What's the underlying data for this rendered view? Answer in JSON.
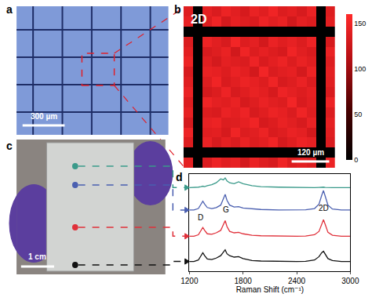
{
  "figure": {
    "labels": [
      "a",
      "b",
      "c",
      "d"
    ],
    "micrograph": {
      "scale_bar": "300 µm"
    },
    "photo": {
      "scale_bar": "1 cm"
    }
  },
  "chart_data": [
    {
      "type": "heatmap",
      "title": "2D",
      "tick_labels": false,
      "scale_bar": "120 µm",
      "colorbar_range": [
        0,
        160
      ],
      "colorbar_ticks": [
        0,
        50,
        100,
        150
      ],
      "z": [
        [
          138,
          0,
          142,
          135,
          147,
          140,
          132,
          145,
          139,
          150,
          136,
          141,
          133,
          146,
          0,
          137
        ],
        [
          144,
          0,
          136,
          149,
          131,
          143,
          138,
          134,
          148,
          140,
          145,
          129,
          142,
          137,
          0,
          141
        ],
        [
          0,
          0,
          0,
          0,
          0,
          0,
          0,
          0,
          0,
          0,
          0,
          0,
          0,
          0,
          0,
          0
        ],
        [
          135,
          0,
          147,
          140,
          133,
          151,
          137,
          142,
          130,
          146,
          139,
          144,
          136,
          148,
          0,
          132
        ],
        [
          141,
          0,
          133,
          138,
          145,
          129,
          149,
          136,
          143,
          137,
          132,
          150,
          140,
          134,
          0,
          146
        ],
        [
          147,
          0,
          140,
          131,
          142,
          138,
          135,
          148,
          134,
          141,
          147,
          136,
          145,
          139,
          0,
          138
        ],
        [
          133,
          0,
          145,
          143,
          137,
          146,
          141,
          130,
          151,
          135,
          140,
          143,
          131,
          147,
          0,
          142
        ],
        [
          139,
          0,
          138,
          150,
          134,
          140,
          147,
          143,
          137,
          149,
          133,
          138,
          146,
          135,
          0,
          140
        ],
        [
          146,
          0,
          131,
          136,
          148,
          133,
          139,
          145,
          141,
          132,
          148,
          142,
          137,
          143,
          0,
          134
        ],
        [
          136,
          0,
          149,
          142,
          139,
          145,
          132,
          138,
          146,
          140,
          136,
          151,
          134,
          141,
          0,
          148
        ],
        [
          143,
          0,
          137,
          134,
          146,
          141,
          148,
          133,
          139,
          147,
          143,
          135,
          149,
          138,
          0,
          136
        ],
        [
          131,
          0,
          144,
          147,
          136,
          138,
          143,
          150,
          132,
          137,
          145,
          140,
          133,
          146,
          0,
          143
        ],
        [
          148,
          0,
          139,
          141,
          132,
          149,
          136,
          140,
          147,
          134,
          138,
          146,
          142,
          130,
          0,
          139
        ],
        [
          137,
          0,
          146,
          133,
          143,
          135,
          145,
          137,
          141,
          150,
          131,
          139,
          148,
          144,
          0,
          135
        ],
        [
          0,
          0,
          0,
          0,
          0,
          0,
          0,
          0,
          0,
          0,
          0,
          0,
          0,
          0,
          0,
          0
        ],
        [
          142,
          0,
          135,
          148,
          140,
          144,
          131,
          146,
          138,
          133,
          149,
          137,
          141,
          136,
          0,
          147
        ]
      ]
    },
    {
      "type": "line",
      "x_label": "Raman Shift (cm⁻¹)",
      "tick_labels": "x",
      "grid": false,
      "xlim": [
        1200,
        3000
      ],
      "xticks": [
        1200,
        1800,
        2400,
        3000
      ],
      "ylim": [
        0,
        10
      ],
      "x": [
        1200,
        1250,
        1300,
        1330,
        1350,
        1370,
        1400,
        1450,
        1500,
        1550,
        1580,
        1600,
        1620,
        1650,
        1700,
        1750,
        1800,
        1900,
        2000,
        2200,
        2400,
        2500,
        2600,
        2650,
        2680,
        2700,
        2720,
        2750,
        2800,
        2900,
        3000
      ],
      "series": [
        {
          "color": "#3a9a8a",
          "values": [
            8.6,
            8.6,
            8.65,
            8.7,
            8.75,
            8.7,
            8.8,
            8.9,
            9.1,
            9.5,
            9.4,
            9.6,
            9.3,
            9.1,
            9.0,
            9.2,
            9.0,
            8.8,
            8.7,
            8.65,
            8.6,
            8.6,
            8.6,
            8.62,
            8.65,
            8.65,
            8.62,
            8.6,
            8.6,
            8.6,
            8.6
          ]
        },
        {
          "color": "#4a5fb0",
          "values": [
            6.3,
            6.3,
            6.45,
            6.9,
            7.2,
            6.9,
            6.55,
            6.45,
            6.55,
            6.8,
            7.4,
            7.9,
            7.3,
            6.8,
            6.6,
            6.65,
            6.5,
            6.4,
            6.35,
            6.3,
            6.3,
            6.32,
            6.45,
            6.9,
            7.8,
            8.3,
            7.7,
            6.8,
            6.4,
            6.3,
            6.3
          ]
        },
        {
          "color": "#e0303a",
          "values": [
            3.6,
            3.6,
            3.75,
            4.2,
            4.5,
            4.2,
            3.85,
            3.8,
            3.95,
            4.2,
            4.8,
            5.2,
            4.6,
            4.1,
            3.95,
            4.0,
            3.85,
            3.7,
            3.65,
            3.6,
            3.6,
            3.62,
            3.75,
            4.1,
            4.9,
            5.3,
            4.8,
            4.0,
            3.7,
            3.6,
            3.6
          ]
        },
        {
          "color": "#111111",
          "values": [
            1.0,
            1.0,
            1.15,
            1.6,
            1.9,
            1.6,
            1.25,
            1.2,
            1.35,
            1.6,
            2.0,
            2.2,
            1.8,
            1.6,
            1.45,
            1.5,
            1.3,
            1.1,
            1.05,
            1.0,
            1.0,
            1.02,
            1.15,
            1.5,
            1.9,
            2.05,
            1.7,
            1.3,
            1.1,
            1.0,
            1.0
          ]
        }
      ],
      "annotations": [
        {
          "text": "D",
          "x": 1320,
          "y": 4.9
        },
        {
          "text": "G",
          "x": 1610,
          "y": 5.7
        },
        {
          "text": "2D",
          "x": 2700,
          "y": 5.9
        }
      ]
    }
  ]
}
